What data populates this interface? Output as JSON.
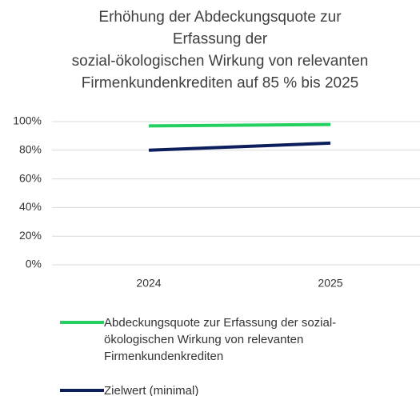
{
  "chart_data": {
    "type": "line",
    "title": [
      "Erhöhung der Abdeckungsquote zur",
      "Erfassung der",
      "sozial-ökologischen Wirkung von relevanten",
      "Firmenkundenkrediten auf 85 % bis 2025"
    ],
    "categories": [
      "2024",
      "2025"
    ],
    "series": [
      {
        "name": "Abdeckungsquote zur Erfassung der sozial-ökologischen Wirkung von relevanten Firmenkundenkrediten",
        "color": "#22d160",
        "values": [
          97,
          98
        ]
      },
      {
        "name": "Zielwert (minimal)",
        "color": "#0c1f5c",
        "values": [
          80,
          85
        ]
      }
    ],
    "ylim": [
      0,
      100
    ],
    "yticks": [
      {
        "value": 0,
        "label": "0%"
      },
      {
        "value": 20,
        "label": "20%"
      },
      {
        "value": 40,
        "label": "40%"
      },
      {
        "value": 60,
        "label": "60%"
      },
      {
        "value": 80,
        "label": "80%"
      },
      {
        "value": 100,
        "label": "100%"
      }
    ],
    "grid": true,
    "legend": "bottom"
  }
}
